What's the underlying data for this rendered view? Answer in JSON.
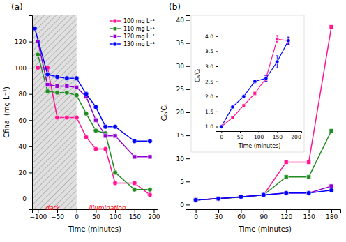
{
  "chart_data": [
    {
      "type": "line",
      "title": "(a)",
      "xlabel": "Time (minutes)",
      "ylabel": "Cfinal (mg L⁻¹)",
      "xlim": [
        -115,
        210
      ],
      "ylim": [
        -8,
        140
      ],
      "xticks": [
        {
          "value": -100,
          "label": "−100"
        },
        {
          "value": -50,
          "label": "−50"
        },
        0,
        50,
        100,
        150,
        200
      ],
      "yticks": [
        0,
        20,
        40,
        60,
        80,
        100,
        120
      ],
      "grid": false,
      "legend": "upper right",
      "regions": [
        {
          "x": [
            -115,
            0
          ]
        }
      ],
      "annotations": [
        {
          "text": "dark",
          "x": -62,
          "y": -5,
          "color": "red"
        },
        {
          "text": "illumination",
          "x": 80,
          "y": -5,
          "color": "red"
        }
      ],
      "series": [
        {
          "name": "100 mg L⁻¹",
          "color": "#ff1493",
          "marker": "circle",
          "x": [
            -100,
            -75,
            -50,
            -25,
            0,
            25,
            50,
            75,
            100,
            150,
            190
          ],
          "values": [
            100,
            100,
            62,
            62,
            62,
            47,
            38,
            38,
            12,
            12,
            3
          ]
        },
        {
          "name": "110 mg L⁻¹",
          "color": "#228b22",
          "marker": "circle",
          "x": [
            -100,
            -75,
            -50,
            -25,
            0,
            25,
            50,
            75,
            100,
            150,
            190
          ],
          "values": [
            110,
            82,
            81,
            81,
            79,
            65,
            52,
            50,
            20,
            7,
            7
          ]
        },
        {
          "name": "120 mg L⁻¹",
          "color": "#9400d3",
          "marker": "square",
          "x": [
            -100,
            -75,
            -50,
            -25,
            0,
            25,
            50,
            75,
            100,
            150,
            190
          ],
          "values": [
            120,
            87,
            86,
            86,
            85,
            78,
            60,
            48,
            48,
            32,
            32
          ]
        },
        {
          "name": "130 mg L⁻¹",
          "color": "#0000ff",
          "marker": "circle",
          "x": [
            -108,
            -75,
            -50,
            -25,
            0,
            25,
            50,
            75,
            100,
            150,
            190
          ],
          "values": [
            130,
            95,
            93,
            92,
            92,
            80,
            70,
            55,
            55,
            44,
            44
          ]
        }
      ]
    },
    {
      "type": "line",
      "title": "(b)",
      "xlabel": "Time (minutes)",
      "ylabel": "C₀/Cₜ",
      "xlim": [
        -8,
        192
      ],
      "ylim": [
        -1,
        41
      ],
      "xticks": [
        0,
        30,
        60,
        90,
        120,
        150,
        180
      ],
      "yticks": [
        0,
        5,
        10,
        15,
        20,
        25,
        30,
        35,
        40
      ],
      "grid": false,
      "series": [
        {
          "color": "#ff1493",
          "marker": "square",
          "x": [
            0,
            30,
            60,
            90,
            120,
            150,
            180
          ],
          "values": [
            1.0,
            1.3,
            1.7,
            2.1,
            9.2,
            9.2,
            38.5
          ]
        },
        {
          "color": "#228b22",
          "marker": "square",
          "x": [
            0,
            30,
            60,
            90,
            120,
            150,
            180
          ],
          "values": [
            1.0,
            1.3,
            1.6,
            2.1,
            6.0,
            6.0,
            16.0
          ]
        },
        {
          "color": "#9400d3",
          "marker": "square",
          "x": [
            0,
            30,
            60,
            90,
            120,
            150,
            180
          ],
          "values": [
            1.0,
            1.3,
            1.7,
            2.1,
            2.5,
            2.5,
            4.0
          ]
        },
        {
          "color": "#0000ff",
          "marker": "circle",
          "x": [
            0,
            30,
            60,
            90,
            120,
            150,
            180
          ],
          "values": [
            1.0,
            1.3,
            1.7,
            2.1,
            2.5,
            2.5,
            3.1
          ]
        }
      ]
    },
    {
      "type": "line",
      "xlabel": "Time (minutes)",
      "ylabel": "C₀/Cₜ",
      "xlim": [
        -10,
        215
      ],
      "ylim": [
        0.85,
        4.55
      ],
      "xticks": [
        0,
        50,
        100,
        150,
        200
      ],
      "yticks": [
        {
          "value": 1.0,
          "label": "1.0"
        },
        1.5,
        {
          "value": 2.0,
          "label": "2.0"
        },
        2.5,
        {
          "value": 3.0,
          "label": "3.0"
        },
        3.5,
        {
          "value": 4.0,
          "label": "4.0"
        }
      ],
      "grid": false,
      "series": [
        {
          "color": "#ff1493",
          "marker": "square",
          "x": [
            0,
            30,
            60,
            90,
            120,
            150,
            180
          ],
          "values": [
            1.0,
            1.3,
            1.7,
            2.1,
            2.6,
            3.9,
            3.85
          ],
          "errors": [
            0.0,
            0.0,
            0.0,
            0.05,
            0.08,
            0.12,
            0.1
          ]
        },
        {
          "color": "#0000ff",
          "marker": "circle",
          "x": [
            0,
            30,
            60,
            90,
            120,
            150,
            180
          ],
          "values": [
            1.0,
            1.65,
            2.0,
            2.5,
            2.6,
            3.15,
            3.85
          ],
          "errors": [
            0.0,
            0.0,
            0.0,
            0.05,
            0.1,
            0.2,
            0.12
          ]
        }
      ]
    }
  ]
}
